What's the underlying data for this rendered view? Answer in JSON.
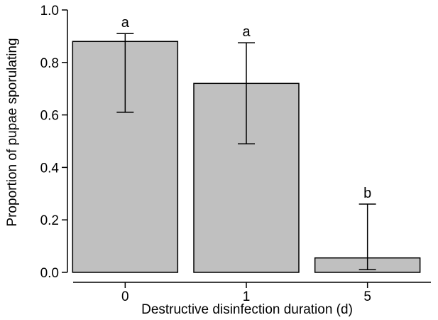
{
  "chart_data": {
    "type": "bar",
    "title": "",
    "xlabel": "Destructive disinfection duration (d)",
    "ylabel": "Proportion of pupae sporulating",
    "categories": [
      "0",
      "1",
      "5"
    ],
    "values": [
      0.88,
      0.72,
      0.055
    ],
    "error_low": [
      0.61,
      0.49,
      0.01
    ],
    "error_high": [
      0.91,
      0.875,
      0.26
    ],
    "significance_labels": [
      "a",
      "a",
      "b"
    ],
    "ylim": [
      0.0,
      1.0
    ],
    "yticks": [
      "0.0",
      "0.2",
      "0.4",
      "0.6",
      "0.8",
      "1.0"
    ],
    "grid": false,
    "legend": "none",
    "bar_color": "#c0c0c0",
    "edge_color": "#000000"
  }
}
